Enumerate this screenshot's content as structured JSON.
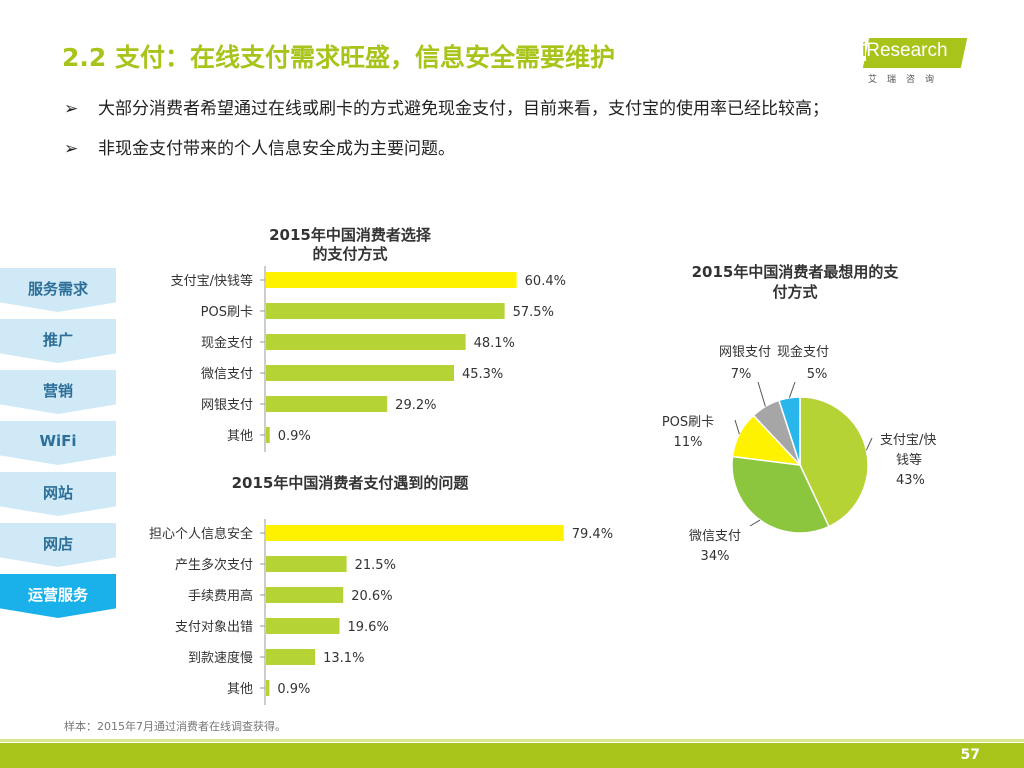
{
  "header": {
    "title": "2.2 支付：在线支付需求旺盛，信息安全需要维护",
    "logo_text_i": "i",
    "logo_text": "Research",
    "logo_sub": "艾瑞咨询"
  },
  "bullets": [
    "大部分消费者希望通过在线或刷卡的方式避免现金支付，目前来看，支付宝的使用率已经比较高；",
    "非现金支付带来的个人信息安全成为主要问题。"
  ],
  "bullet_marker": "➢",
  "nav": {
    "items": [
      "服务需求",
      "推广",
      "营销",
      "WiFi",
      "网站",
      "网店",
      "运营服务"
    ],
    "active_index": 6
  },
  "colors": {
    "accent": "#a8c41b",
    "bar_green": "#b5d334",
    "bar_yellow": "#fff200",
    "nav_bg": "#cfe9f7",
    "nav_active": "#1ab1ea"
  },
  "chart_data": [
    {
      "type": "bar",
      "orientation": "horizontal",
      "title_line1": "2015年中国消费者选择",
      "title_line2": "的支付方式",
      "categories": [
        "支付宝/快钱等",
        "POS刷卡",
        "现金支付",
        "微信支付",
        "网银支付",
        "其他"
      ],
      "values": [
        60.4,
        57.5,
        48.1,
        45.3,
        29.2,
        0.9
      ],
      "labels": [
        "60.4%",
        "57.5%",
        "48.1%",
        "45.3%",
        "29.2%",
        "0.9%"
      ],
      "highlight_index": 0,
      "xlim": [
        0,
        100
      ]
    },
    {
      "type": "bar",
      "orientation": "horizontal",
      "title": "2015年中国消费者支付遇到的问题",
      "categories": [
        "担心个人信息安全",
        "产生多次支付",
        "手续费用高",
        "支付对象出错",
        "到款速度慢",
        "其他"
      ],
      "values": [
        79.4,
        21.5,
        20.6,
        19.6,
        13.1,
        0.9
      ],
      "labels": [
        "79.4%",
        "21.5%",
        "20.6%",
        "19.6%",
        "13.1%",
        "0.9%"
      ],
      "highlight_index": 0,
      "xlim": [
        0,
        100
      ]
    },
    {
      "type": "pie",
      "title_line1": "2015年中国消费者最想用的支",
      "title_line2": "付方式",
      "slices": [
        {
          "name_line1": "支付宝/快",
          "name_line2": "钱等",
          "value": 43,
          "label": "43%",
          "color": "#b5d334"
        },
        {
          "name_line1": "微信支付",
          "name_line2": "",
          "value": 34,
          "label": "34%",
          "color": "#8cc63f"
        },
        {
          "name_line1": "POS刷卡",
          "name_line2": "",
          "value": 11,
          "label": "11%",
          "color": "#fff200"
        },
        {
          "name_line1": "网银支付",
          "name_line2": "",
          "value": 7,
          "label": "7%",
          "color": "#a6a6a6"
        },
        {
          "name_line1": "现金支付",
          "name_line2": "",
          "value": 5,
          "label": "5%",
          "color": "#29b6ea"
        }
      ]
    }
  ],
  "footer": {
    "note": "样本：2015年7月通过消费者在线调查获得。",
    "page": "57"
  }
}
